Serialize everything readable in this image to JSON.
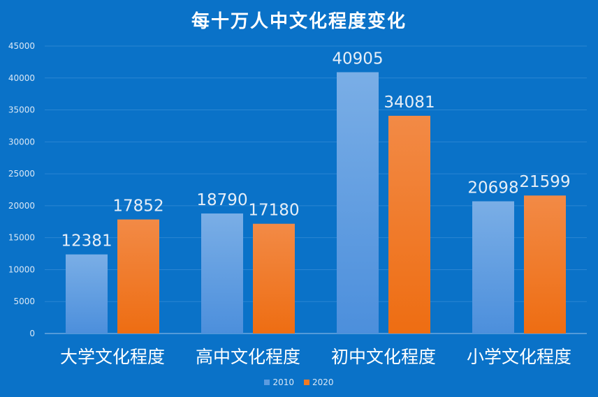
{
  "chart_data": {
    "type": "bar",
    "title": "每十万人中文化程度变化",
    "categories": [
      "大学文化程度",
      "高中文化程度",
      "初中文化程度",
      "小学文化程度"
    ],
    "series": [
      {
        "name": "2010",
        "values": [
          12381,
          18790,
          40905,
          20698
        ],
        "color": "#5b9be0"
      },
      {
        "name": "2020",
        "values": [
          17852,
          17180,
          34081,
          21599
        ],
        "color": "#f27a22"
      }
    ],
    "ylim": [
      0,
      45000
    ],
    "yticks": [
      0,
      5000,
      10000,
      15000,
      20000,
      25000,
      30000,
      35000,
      40000,
      45000
    ],
    "grid": true,
    "legend": "bottom",
    "xlabel": "",
    "ylabel": ""
  }
}
